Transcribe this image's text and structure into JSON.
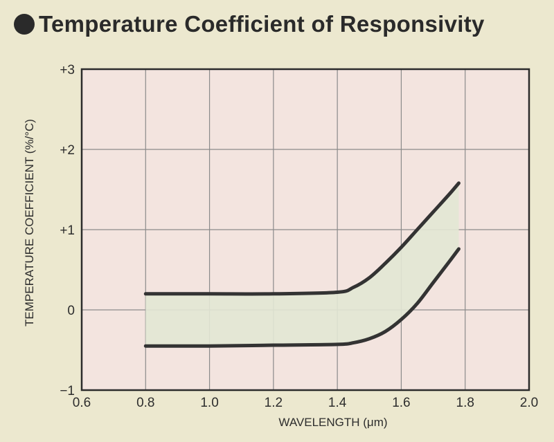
{
  "header": {
    "title": "Temperature Coefficient of Responsivity"
  },
  "chart_data": {
    "type": "area",
    "title": "Temperature Coefficient of Responsivity",
    "xlabel": "WAVELENGTH (μm)",
    "ylabel": "TEMPERATURE COEFFICIENT (%/°C)",
    "xlim": [
      0.6,
      2.0
    ],
    "ylim": [
      -1,
      3
    ],
    "x_ticks": [
      0.6,
      0.8,
      1.0,
      1.2,
      1.4,
      1.6,
      1.8,
      2.0
    ],
    "x_tick_labels": [
      "0.6",
      "0.8",
      "1.0",
      "1.2",
      "1.4",
      "1.6",
      "1.8",
      "2.0"
    ],
    "y_ticks": [
      -1,
      0,
      1,
      2,
      3
    ],
    "y_tick_labels": [
      "−1",
      "0",
      "+1",
      "+2",
      "+3"
    ],
    "grid": true,
    "series": [
      {
        "x": [
          0.8,
          1.0,
          1.2,
          1.4,
          1.45,
          1.5,
          1.55,
          1.6,
          1.65,
          1.7,
          1.75,
          1.78
        ],
        "values": [
          0.2,
          0.2,
          0.2,
          0.22,
          0.28,
          0.4,
          0.58,
          0.78,
          1.0,
          1.22,
          1.44,
          1.58
        ]
      },
      {
        "x": [
          0.8,
          1.0,
          1.2,
          1.4,
          1.45,
          1.5,
          1.55,
          1.6,
          1.65,
          1.7,
          1.75,
          1.78
        ],
        "values": [
          -0.45,
          -0.45,
          -0.44,
          -0.43,
          -0.41,
          -0.36,
          -0.27,
          -0.12,
          0.08,
          0.34,
          0.6,
          0.76
        ]
      }
    ],
    "band_fill_color": "#e2e7d4",
    "plot_background_color": "#f3e4df",
    "line_color": "#333333",
    "grid_color": "#8a8a8a"
  }
}
